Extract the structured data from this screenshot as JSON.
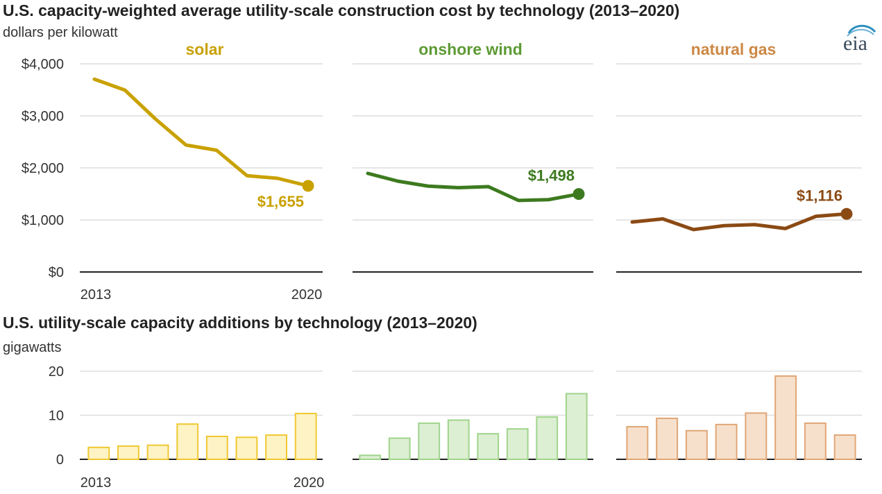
{
  "top_title": "U.S. capacity-weighted average utility-scale construction cost by technology (2013–2020)",
  "top_unit": "dollars per kilowatt",
  "bottom_title": "U.S. utility-scale capacity additions by technology (2013–2020)",
  "bottom_unit": "gigawatts",
  "logo_text": "eia",
  "colors": {
    "solar_line": "#c9a100",
    "wind_line": "#3d7a1f",
    "gas_line": "#8b4a14",
    "solar_title": "#c9a100",
    "wind_title": "#5d9a34",
    "gas_title": "#cc8844",
    "solar_bar_fill": "#fdf3c4",
    "solar_bar_stroke": "#f0c832",
    "wind_bar_fill": "#ddefd3",
    "wind_bar_stroke": "#9fd48c",
    "gas_bar_fill": "#f6e0cb",
    "gas_bar_stroke": "#e0a676"
  },
  "chart_data": [
    {
      "type": "line",
      "panel": "construction-cost",
      "title": "U.S. capacity-weighted average utility-scale construction cost by technology (2013–2020)",
      "ylabel": "dollars per kilowatt",
      "x": [
        2013,
        2014,
        2015,
        2016,
        2017,
        2018,
        2019,
        2020
      ],
      "x_tick_labels": [
        "2013",
        "2020"
      ],
      "ylim": [
        0,
        4000
      ],
      "y_ticks": [
        0,
        1000,
        2000,
        3000,
        4000
      ],
      "y_tick_labels": [
        "$0",
        "$1,000",
        "$2,000",
        "$3,000",
        "$4,000"
      ],
      "grid": true,
      "series": [
        {
          "name": "solar",
          "values": [
            3705,
            3495,
            2940,
            2440,
            2340,
            1850,
            1800,
            1655
          ],
          "end_label": "$1,655"
        },
        {
          "name": "onshore wind",
          "values": [
            1895,
            1745,
            1650,
            1620,
            1640,
            1375,
            1390,
            1498
          ],
          "end_label": "$1,498"
        },
        {
          "name": "natural gas",
          "values": [
            960,
            1020,
            815,
            890,
            910,
            835,
            1070,
            1116
          ],
          "end_label": "$1,116"
        }
      ]
    },
    {
      "type": "bar",
      "panel": "capacity-additions",
      "title": "U.S. utility-scale capacity additions by technology (2013–2020)",
      "ylabel": "gigawatts",
      "categories": [
        "2013",
        "2014",
        "2015",
        "2016",
        "2017",
        "2018",
        "2019",
        "2020"
      ],
      "x_tick_labels": [
        "2013",
        "2020"
      ],
      "ylim": [
        0,
        20
      ],
      "y_ticks": [
        0,
        10,
        20
      ],
      "y_tick_labels": [
        "0",
        "10",
        "20"
      ],
      "grid": true,
      "series": [
        {
          "name": "solar",
          "values": [
            2.7,
            3.0,
            3.2,
            8.0,
            5.2,
            5.0,
            5.5,
            10.4
          ]
        },
        {
          "name": "onshore wind",
          "values": [
            0.9,
            4.8,
            8.2,
            8.9,
            5.8,
            6.9,
            9.6,
            14.9
          ]
        },
        {
          "name": "natural gas",
          "values": [
            7.4,
            9.3,
            6.5,
            7.9,
            10.5,
            18.9,
            8.2,
            5.5
          ]
        }
      ]
    }
  ]
}
